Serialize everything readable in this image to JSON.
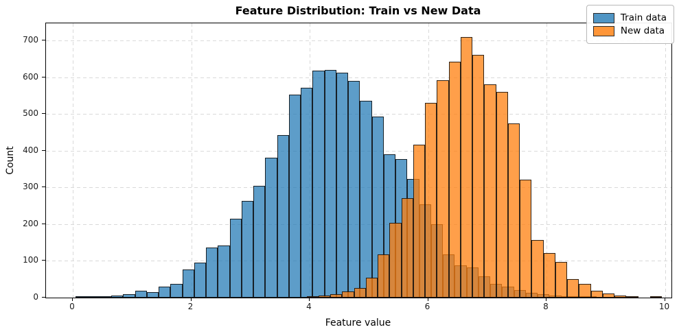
{
  "figure": {
    "title": "Feature Distribution: Train vs New Data",
    "xlabel": "Feature value",
    "ylabel": "Count"
  },
  "legend": {
    "items": [
      {
        "label": "Train data",
        "color": "rgba(31,119,180,0.78)"
      },
      {
        "label": "New data",
        "color": "rgba(255,127,14,0.82)"
      }
    ]
  },
  "axes": {
    "xtick_values": [
      0,
      2,
      4,
      6,
      8,
      10
    ],
    "xtick_labels": [
      "0",
      "2",
      "4",
      "6",
      "8",
      "10"
    ],
    "ytick_values": [
      0,
      100,
      200,
      300,
      400,
      500,
      600,
      700
    ],
    "ytick_labels": [
      "0",
      "100",
      "200",
      "300",
      "400",
      "500",
      "600",
      "700"
    ]
  },
  "chart_data": {
    "type": "bar",
    "subtype": "histogram",
    "title": "Feature Distribution: Train vs New Data",
    "xlabel": "Feature value",
    "ylabel": "Count",
    "xlim": [
      -0.45,
      10.15
    ],
    "ylim": [
      0,
      745
    ],
    "grid": true,
    "legend_position": "upper right",
    "series": [
      {
        "name": "Train data",
        "fill": "rgba(31,119,180,0.72)",
        "edge": "rgba(10,10,10,0.85)",
        "bin_start": 0.05,
        "bin_width": 0.2,
        "counts": [
          2,
          2,
          3,
          6,
          9,
          18,
          15,
          30,
          38,
          77,
          95,
          136,
          142,
          215,
          264,
          305,
          380,
          443,
          553,
          572,
          618,
          620,
          613,
          589,
          536,
          492,
          391,
          378,
          323,
          254,
          200,
          118,
          88,
          82,
          57,
          38,
          29,
          20,
          13,
          10,
          6,
          3,
          2,
          1
        ]
      },
      {
        "name": "New data",
        "fill": "rgba(255,127,14,0.75)",
        "edge": "rgba(10,10,10,0.85)",
        "bin_start": 3.95,
        "bin_width": 0.2,
        "counts": [
          2,
          5,
          10,
          17,
          26,
          54,
          117,
          203,
          270,
          416,
          531,
          591,
          643,
          710,
          660,
          580,
          560,
          475,
          321,
          157,
          121,
          98,
          50,
          38,
          18,
          12,
          5,
          2,
          0,
          2
        ]
      }
    ]
  }
}
